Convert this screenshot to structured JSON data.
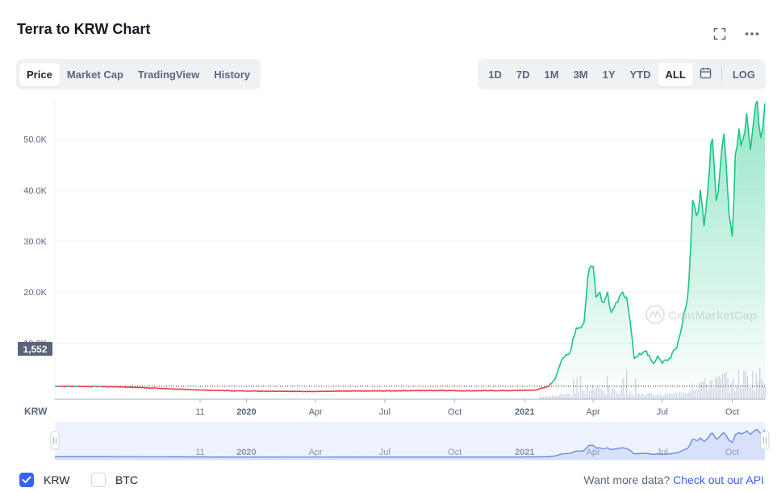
{
  "title": "Terra to KRW Chart",
  "icons": {
    "fullscreen": "fullscreen-icon",
    "more": "more-dots-icon",
    "calendar": "calendar-icon"
  },
  "tabs": [
    {
      "label": "Price",
      "active": true
    },
    {
      "label": "Market Cap",
      "active": false
    },
    {
      "label": "TradingView",
      "active": false
    },
    {
      "label": "History",
      "active": false
    }
  ],
  "ranges": [
    {
      "label": "1D",
      "active": false
    },
    {
      "label": "7D",
      "active": false
    },
    {
      "label": "1M",
      "active": false
    },
    {
      "label": "3M",
      "active": false
    },
    {
      "label": "1Y",
      "active": false
    },
    {
      "label": "YTD",
      "active": false
    },
    {
      "label": "ALL",
      "active": true
    }
  ],
  "log_label": "LOG",
  "currency_label": "KRW",
  "watermark": "CoinMarketCap",
  "footer": {
    "krw_label": "KRW",
    "krw_checked": true,
    "btc_label": "BTC",
    "btc_checked": false,
    "more_text": "Want more data?",
    "more_link": "Check out our API"
  },
  "colors": {
    "up": "#16c784",
    "down": "#ea3943",
    "accent": "#3861fb",
    "navigator": "#5b7be0"
  },
  "chart_data": {
    "type": "line",
    "y_ticks": [
      10000,
      20000,
      30000,
      40000,
      50000
    ],
    "y_tick_labels": [
      "10.0K",
      "20.0K",
      "30.0K",
      "40.0K",
      "50.0K"
    ],
    "ylim": [
      -1000,
      58000
    ],
    "reference_value": 1552,
    "reference_label": "1,552",
    "x_range": [
      "2019-04-24",
      "2021-11-13"
    ],
    "x_ticks": [
      {
        "date": "2019-11-01",
        "label": "11",
        "bold": false
      },
      {
        "date": "2020-01-01",
        "label": "2020",
        "bold": true
      },
      {
        "date": "2020-04-01",
        "label": "Apr",
        "bold": false
      },
      {
        "date": "2020-07-01",
        "label": "Jul",
        "bold": false
      },
      {
        "date": "2020-10-01",
        "label": "Oct",
        "bold": false
      },
      {
        "date": "2021-01-01",
        "label": "2021",
        "bold": true
      },
      {
        "date": "2021-04-01",
        "label": "Apr",
        "bold": false
      },
      {
        "date": "2021-07-01",
        "label": "Jul",
        "bold": false
      },
      {
        "date": "2021-10-01",
        "label": "Oct",
        "bold": false
      }
    ],
    "series": [
      {
        "x": [
          "2019-04-24",
          "2019-06-01",
          "2019-07-15",
          "2019-08-15",
          "2019-09-15",
          "2019-10-15",
          "2019-11-15",
          "2019-12-15",
          "2020-01-15",
          "2020-02-15",
          "2020-03-15",
          "2020-04-15",
          "2020-05-15",
          "2020-06-15",
          "2020-07-15",
          "2020-08-15",
          "2020-09-15",
          "2020-10-15",
          "2020-11-15",
          "2020-12-15",
          "2021-01-15",
          "2021-02-01",
          "2021-02-10",
          "2021-02-20",
          "2021-03-01",
          "2021-03-10",
          "2021-03-20",
          "2021-03-25",
          "2021-04-01",
          "2021-04-05",
          "2021-04-10",
          "2021-04-15",
          "2021-04-20",
          "2021-04-25",
          "2021-05-01",
          "2021-05-10",
          "2021-05-15",
          "2021-05-20",
          "2021-05-25",
          "2021-06-01",
          "2021-06-10",
          "2021-06-20",
          "2021-06-25",
          "2021-07-01",
          "2021-07-10",
          "2021-07-20",
          "2021-07-25",
          "2021-08-01",
          "2021-08-05",
          "2021-08-10",
          "2021-08-15",
          "2021-08-20",
          "2021-08-25",
          "2021-09-01",
          "2021-09-05",
          "2021-09-10",
          "2021-09-15",
          "2021-09-20",
          "2021-09-25",
          "2021-10-01",
          "2021-10-05",
          "2021-10-10",
          "2021-10-15",
          "2021-10-20",
          "2021-10-25",
          "2021-11-01",
          "2021-11-05",
          "2021-11-10",
          "2021-11-13"
        ],
        "y": [
          1552,
          1520,
          1450,
          1300,
          1100,
          900,
          750,
          650,
          600,
          580,
          520,
          550,
          600,
          620,
          650,
          700,
          720,
          650,
          680,
          700,
          800,
          1500,
          3000,
          7000,
          8000,
          13000,
          14000,
          23000,
          25000,
          19000,
          20000,
          18000,
          20000,
          16000,
          18000,
          20000,
          19000,
          14000,
          7000,
          8000,
          8500,
          6000,
          7500,
          6000,
          7000,
          9000,
          12000,
          17000,
          22000,
          38000,
          35000,
          40000,
          33000,
          44000,
          50000,
          38000,
          44000,
          51000,
          40000,
          31000,
          47000,
          52000,
          50000,
          55000,
          48000,
          57000,
          53000,
          52000,
          57000
        ]
      }
    ]
  }
}
